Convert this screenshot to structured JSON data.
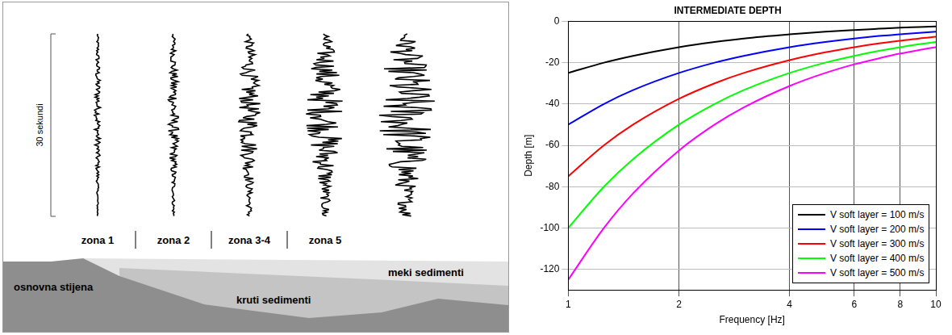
{
  "diagram": {
    "scale_label": "30 sekundi",
    "zones": [
      "zona 1",
      "zona 2",
      "zona 3-4",
      "zona 5"
    ],
    "layers": [
      "osnovna stijena",
      "kruti sedimenti",
      "meki sedimenti"
    ]
  },
  "chart_data": {
    "type": "line",
    "title": "INTERMEDIATE DEPTH",
    "x_label": "Frequency [Hz]",
    "y_label": "Depth [m]",
    "log": "x",
    "grid": true,
    "legend": "lower right",
    "xlim": [
      1,
      10
    ],
    "xticks": [
      1,
      2,
      4,
      6,
      8,
      10
    ],
    "ylim": [
      -130,
      0
    ],
    "yticks": [
      -120,
      -100,
      -80,
      -60,
      -40,
      -20,
      0
    ],
    "x": [
      1,
      1.25,
      1.5,
      2,
      2.5,
      3,
      4,
      5,
      6,
      7,
      8,
      9,
      10
    ],
    "series": [
      {
        "name": "V soft layer = 100 m/s",
        "color": "#000000",
        "values": [
          -25,
          -20,
          -16.7,
          -12.5,
          -10,
          -8.3,
          -6.3,
          -5,
          -4.2,
          -3.6,
          -3.1,
          -2.8,
          -2.5
        ]
      },
      {
        "name": "V soft layer = 200 m/s",
        "color": "#0000ff",
        "values": [
          -50,
          -40,
          -33.3,
          -25,
          -20,
          -16.7,
          -12.5,
          -10,
          -8.3,
          -7.1,
          -6.3,
          -5.6,
          -5
        ]
      },
      {
        "name": "V soft layer = 300 m/s",
        "color": "#ff0000",
        "values": [
          -75,
          -60,
          -50,
          -37.5,
          -30,
          -25,
          -18.8,
          -15,
          -12.5,
          -10.7,
          -9.4,
          -8.3,
          -7.5
        ]
      },
      {
        "name": "V soft layer = 400 m/s",
        "color": "#00ff00",
        "values": [
          -100,
          -80,
          -66.7,
          -50,
          -40,
          -33.3,
          -25,
          -20,
          -16.7,
          -14.3,
          -12.5,
          -11.1,
          -10
        ]
      },
      {
        "name": "V soft layer = 500 m/s",
        "color": "#ff00ff",
        "values": [
          -125,
          -100,
          -83.3,
          -62.5,
          -50,
          -41.7,
          -31.3,
          -25,
          -20.8,
          -17.9,
          -15.6,
          -13.9,
          -12.5
        ]
      }
    ]
  }
}
